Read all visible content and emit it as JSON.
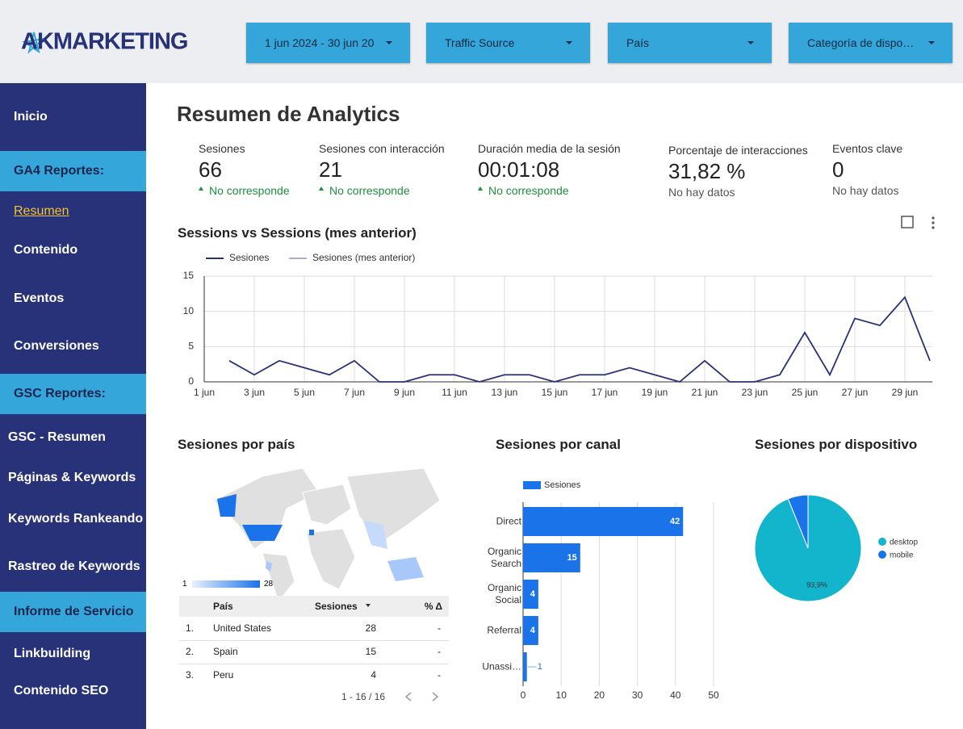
{
  "header": {
    "logo": "AKMARKETING",
    "filters": [
      "1 jun 2024 - 30 jun 20",
      "Traffic Source",
      "País",
      "Categoría de dispo…"
    ]
  },
  "sidebar": {
    "items": [
      "Inicio",
      "GA4 Reportes:",
      "Resumen",
      "Contenido",
      "Eventos",
      "Conversiones",
      "GSC Reportes:",
      "GSC - Resumen",
      "Páginas & Keywords",
      "Keywords Rankeando",
      "Rastreo de Keywords",
      "Informe de Servicio",
      "Linkbuilding",
      "Contenido SEO"
    ]
  },
  "page": {
    "title": "Resumen de Analytics"
  },
  "kpis": [
    {
      "label": "Sesiones",
      "value": "66",
      "note": "No corresponde"
    },
    {
      "label": "Sesiones con interacción",
      "value": "21",
      "note": "No corresponde"
    },
    {
      "label": "Duración media de la sesión",
      "value": "00:01:08",
      "note": "No corresponde"
    },
    {
      "label": "Porcentaje de interacciones",
      "value": "31,82 %",
      "note": "No hay datos"
    },
    {
      "label": "Eventos clave",
      "value": "0",
      "note": "No hay datos"
    }
  ],
  "chart_data": [
    {
      "type": "line",
      "title": "Sessions vs Sessions (mes anterior)",
      "categories": [
        "1 jun",
        null,
        "3 jun",
        null,
        "5 jun",
        null,
        "7 jun",
        null,
        "9 jun",
        null,
        "11 jun",
        null,
        "13 jun",
        null,
        "15 jun",
        null,
        "17 jun",
        null,
        "19 jun",
        null,
        "21 jun",
        null,
        "23 jun",
        null,
        "25 jun",
        null,
        "27 jun",
        null,
        "29 jun",
        null
      ],
      "series": [
        {
          "name": "Sesiones",
          "color": "#283278",
          "values": [
            null,
            3,
            1,
            3,
            2,
            1,
            3,
            0,
            0,
            1,
            1,
            0,
            1,
            1,
            0,
            1,
            1,
            2,
            1,
            0,
            3,
            0,
            0,
            1,
            7,
            1,
            9,
            8,
            12,
            3
          ]
        },
        {
          "name": "Sesiones (mes anterior)",
          "color": "#aab0dd",
          "values": [
            null,
            null,
            null,
            null,
            null,
            null,
            null,
            null,
            null,
            null,
            null,
            null,
            null,
            null,
            null,
            null,
            null,
            null,
            null,
            null,
            null,
            null,
            null,
            null,
            null,
            null,
            null,
            null,
            null,
            null
          ]
        }
      ],
      "ylim": [
        0,
        15
      ],
      "yticks": [
        0,
        5,
        10,
        15
      ],
      "grid": true
    },
    {
      "type": "hbar",
      "title": "Sesiones por canal",
      "categories": [
        "Direct",
        "Organic Search",
        "Organic Social",
        "Referral",
        "Unassi…"
      ],
      "series": [
        {
          "name": "Sesiones",
          "color": "#1a73e8",
          "values": [
            42,
            15,
            4,
            4,
            1
          ]
        }
      ],
      "xlim": [
        0,
        50
      ],
      "xticks": [
        0,
        10,
        20,
        30,
        40,
        50
      ],
      "grid": true
    },
    {
      "type": "pie",
      "title": "Sesiones por dispositivo",
      "categories": [
        "desktop",
        "mobile"
      ],
      "values": [
        93.9,
        6.1
      ],
      "value_labels": [
        "93,9%",
        null
      ],
      "colors": [
        "#12b5cb",
        "#1a73e8"
      ]
    }
  ],
  "country": {
    "title": "Sesiones por país",
    "legend": [
      "1",
      "28"
    ],
    "table": {
      "header": [
        "País",
        "Sesiones",
        "% Δ"
      ],
      "rows": [
        [
          "1.",
          "United States",
          "28",
          "-"
        ],
        [
          "2.",
          "Spain",
          "15",
          "-"
        ],
        [
          "3.",
          "Peru",
          "4",
          "-"
        ]
      ],
      "pagination": "1 - 16 / 16"
    }
  }
}
